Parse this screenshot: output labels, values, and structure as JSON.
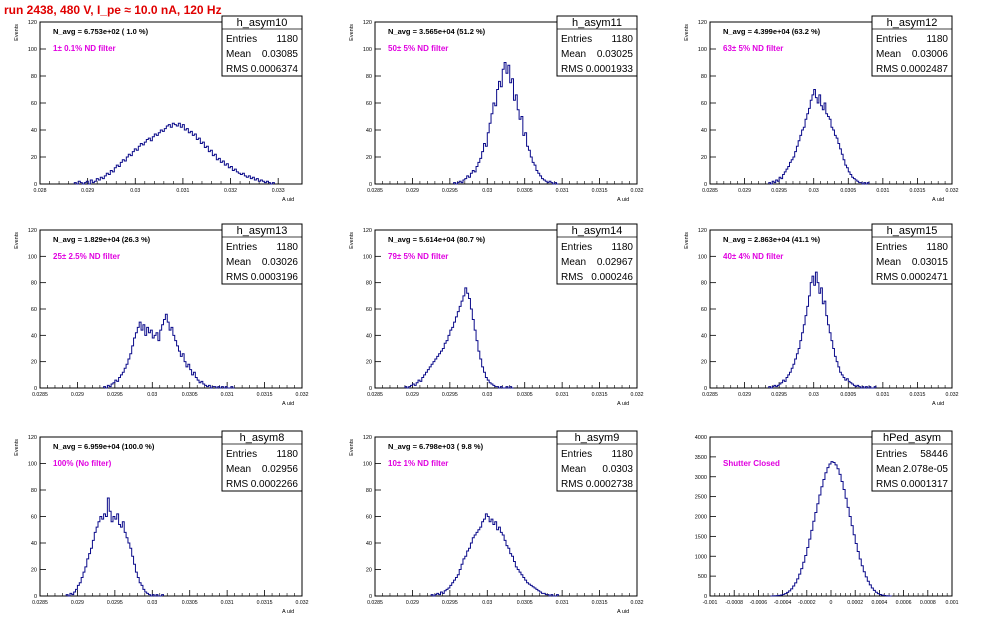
{
  "header": {
    "run_title": "run 2438,   480 V, I_pe ≈ 10.0 nA, 120 Hz"
  },
  "stats_labels": {
    "entries": "Entries",
    "mean": "Mean",
    "rms": "RMS"
  },
  "colors": {
    "histogram_line": "#0a0a8a",
    "annotation": "#e000e0",
    "title_red": "#e00000",
    "axis": "#000000"
  },
  "chart_data": [
    {
      "type": "bar",
      "name": "h_asym10",
      "ylabel": "Events",
      "xlabel": "A uid",
      "avg_text": "N_avg = 6.753e+02 ( 1.0 %)",
      "filter_text": "1± 0.1% ND filter",
      "entries": "1180",
      "mean": "0.03085",
      "rms": "0.0006374",
      "xlim": [
        0.028,
        0.0335
      ],
      "ylim": [
        0,
        120
      ],
      "xticks": [
        0.028,
        0.029,
        0.03,
        0.031,
        0.032,
        0.033
      ],
      "xtick_labels": [
        "0.028",
        "0.029",
        "0.03",
        "0.031",
        "0.032",
        "0.033"
      ],
      "yticks": [
        0,
        20,
        40,
        60,
        80,
        100,
        120
      ],
      "bin_edges": [
        0.02872,
        0.03292
      ],
      "values": [
        1,
        0,
        2,
        1,
        0,
        1,
        2,
        0,
        3,
        1,
        2,
        4,
        3,
        5,
        4,
        6,
        8,
        7,
        10,
        9,
        12,
        14,
        13,
        16,
        18,
        17,
        20,
        22,
        21,
        24,
        26,
        25,
        28,
        30,
        29,
        31,
        33,
        34,
        32,
        35,
        37,
        36,
        38,
        40,
        39,
        41,
        43,
        44,
        42,
        45,
        44,
        43,
        45,
        42,
        44,
        40,
        41,
        38,
        39,
        36,
        37,
        33,
        34,
        30,
        31,
        27,
        28,
        24,
        25,
        21,
        22,
        18,
        19,
        16,
        17,
        14,
        15,
        12,
        13,
        10,
        11,
        9,
        8,
        7,
        8,
        6,
        5,
        6,
        4,
        5,
        3,
        4,
        2,
        3,
        2,
        1,
        2,
        1,
        0,
        1
      ]
    },
    {
      "type": "bar",
      "name": "h_asym11",
      "ylabel": "Events",
      "xlabel": "A uid",
      "avg_text": "N_avg = 3.565e+04 (51.2 %)",
      "filter_text": "50± 5% ND filter",
      "entries": "1180",
      "mean": "0.03025",
      "rms": "0.0001933",
      "xlim": [
        0.0285,
        0.032
      ],
      "ylim": [
        0,
        120
      ],
      "xticks": [
        0.0285,
        0.029,
        0.0295,
        0.03,
        0.0305,
        0.031,
        0.0315,
        0.032
      ],
      "xtick_labels": [
        "0.0285",
        "0.029",
        "0.0295",
        "0.03",
        "0.0305",
        "0.031",
        "0.0315",
        "0.032"
      ],
      "yticks": [
        0,
        20,
        40,
        60,
        80,
        100,
        120
      ],
      "bin_edges": [
        0.02955,
        0.03095
      ],
      "values": [
        1,
        0,
        1,
        2,
        1,
        3,
        4,
        6,
        5,
        8,
        10,
        9,
        13,
        16,
        19,
        24,
        30,
        28,
        38,
        45,
        52,
        60,
        58,
        70,
        76,
        72,
        85,
        90,
        82,
        88,
        75,
        78,
        62,
        66,
        55,
        48,
        50,
        36,
        38,
        28,
        25,
        20,
        16,
        14,
        10,
        8,
        6,
        4,
        3,
        2,
        1,
        2,
        1,
        0,
        1,
        0
      ]
    },
    {
      "type": "bar",
      "name": "h_asym12",
      "ylabel": "Events",
      "xlabel": "A uid",
      "avg_text": "N_avg = 4.399e+04 (63.2 %)",
      "filter_text": "63± 5% ND filter",
      "entries": "1180",
      "mean": "0.03006",
      "rms": "0.0002487",
      "xlim": [
        0.0285,
        0.032
      ],
      "ylim": [
        0,
        120
      ],
      "xticks": [
        0.0285,
        0.029,
        0.0295,
        0.03,
        0.0305,
        0.031,
        0.0315,
        0.032
      ],
      "xtick_labels": [
        "0.0285",
        "0.029",
        "0.0295",
        "0.03",
        "0.0305",
        "0.031",
        "0.0315",
        "0.032"
      ],
      "yticks": [
        0,
        20,
        40,
        60,
        80,
        100,
        120
      ],
      "bin_edges": [
        0.02935,
        0.0308
      ],
      "values": [
        1,
        0,
        2,
        1,
        3,
        2,
        5,
        4,
        7,
        9,
        11,
        13,
        16,
        18,
        20,
        24,
        28,
        32,
        36,
        40,
        42,
        48,
        52,
        56,
        62,
        66,
        70,
        64,
        60,
        66,
        58,
        55,
        60,
        52,
        50,
        48,
        42,
        40,
        36,
        34,
        30,
        26,
        22,
        18,
        14,
        12,
        9,
        7,
        5,
        4,
        3,
        2,
        1,
        1,
        0,
        1,
        0,
        1
      ]
    },
    {
      "type": "bar",
      "name": "h_asym13",
      "ylabel": "Events",
      "xlabel": "A uid",
      "avg_text": "N_avg = 1.829e+04 (26.3 %)",
      "filter_text": "25± 2.5% ND filter",
      "entries": "1180",
      "mean": "0.03026",
      "rms": "0.0003196",
      "xlim": [
        0.0285,
        0.032
      ],
      "ylim": [
        0,
        120
      ],
      "xticks": [
        0.0285,
        0.029,
        0.0295,
        0.03,
        0.0305,
        0.031,
        0.0315,
        0.032
      ],
      "xtick_labels": [
        "0.0285",
        "0.029",
        "0.0295",
        "0.03",
        "0.0305",
        "0.031",
        "0.0315",
        "0.032"
      ],
      "yticks": [
        0,
        20,
        40,
        60,
        80,
        100,
        120
      ],
      "bin_edges": [
        0.02935,
        0.0311
      ],
      "values": [
        1,
        0,
        2,
        1,
        3,
        4,
        6,
        5,
        8,
        10,
        12,
        15,
        18,
        22,
        26,
        32,
        38,
        42,
        46,
        50,
        44,
        48,
        40,
        46,
        42,
        44,
        38,
        40,
        42,
        36,
        44,
        48,
        52,
        56,
        50,
        44,
        46,
        40,
        36,
        32,
        28,
        24,
        26,
        20,
        16,
        18,
        14,
        10,
        12,
        8,
        6,
        4,
        5,
        3,
        2,
        1,
        2,
        0,
        1,
        1,
        0,
        1,
        0,
        1,
        0,
        1,
        0,
        0,
        1,
        0
      ]
    },
    {
      "type": "bar",
      "name": "h_asym14",
      "ylabel": "Events",
      "xlabel": "A uid",
      "avg_text": "N_avg = 5.614e+04 (80.7 %)",
      "filter_text": "79± 5% ND filter",
      "entries": "1180",
      "mean": "0.02967",
      "rms": "0.000246",
      "xlim": [
        0.0285,
        0.032
      ],
      "ylim": [
        0,
        120
      ],
      "xticks": [
        0.0285,
        0.029,
        0.0295,
        0.03,
        0.0305,
        0.031,
        0.0315,
        0.032
      ],
      "xtick_labels": [
        "0.0285",
        "0.029",
        "0.0295",
        "0.03",
        "0.0305",
        "0.031",
        "0.0315",
        "0.032"
      ],
      "yticks": [
        0,
        20,
        40,
        60,
        80,
        100,
        120
      ],
      "bin_edges": [
        0.0289,
        0.03035
      ],
      "values": [
        1,
        0,
        1,
        2,
        3,
        2,
        4,
        6,
        5,
        8,
        10,
        12,
        14,
        16,
        18,
        20,
        22,
        24,
        26,
        28,
        30,
        34,
        36,
        40,
        44,
        46,
        50,
        54,
        58,
        62,
        66,
        70,
        76,
        72,
        68,
        60,
        52,
        44,
        36,
        28,
        22,
        16,
        12,
        8,
        6,
        4,
        3,
        2,
        1,
        1,
        0,
        1,
        0,
        0,
        1,
        0,
        1,
        0
      ]
    },
    {
      "type": "bar",
      "name": "h_asym15",
      "ylabel": "Events",
      "xlabel": "A uid",
      "avg_text": "N_avg = 2.863e+04 (41.1 %)",
      "filter_text": "40± 4% ND filter",
      "entries": "1180",
      "mean": "0.03015",
      "rms": "0.0002471",
      "xlim": [
        0.0285,
        0.032
      ],
      "ylim": [
        0,
        120
      ],
      "xticks": [
        0.0285,
        0.029,
        0.0295,
        0.03,
        0.0305,
        0.031,
        0.0315,
        0.032
      ],
      "xtick_labels": [
        "0.0285",
        "0.029",
        "0.0295",
        "0.03",
        "0.0305",
        "0.031",
        "0.0315",
        "0.032"
      ],
      "yticks": [
        0,
        20,
        40,
        60,
        80,
        100,
        120
      ],
      "bin_edges": [
        0.02935,
        0.0309
      ],
      "values": [
        1,
        0,
        1,
        2,
        1,
        2,
        3,
        4,
        6,
        5,
        8,
        10,
        12,
        15,
        18,
        22,
        26,
        30,
        36,
        42,
        48,
        55,
        62,
        70,
        80,
        85,
        78,
        88,
        80,
        72,
        76,
        64,
        66,
        55,
        48,
        42,
        36,
        30,
        24,
        20,
        16,
        12,
        10,
        8,
        6,
        7,
        5,
        4,
        3,
        2,
        1,
        2,
        1,
        0,
        1,
        0,
        1,
        0,
        1,
        0,
        0,
        1
      ]
    },
    {
      "type": "bar",
      "name": "h_asym8",
      "ylabel": "Events",
      "xlabel": "A uid",
      "avg_text": "N_avg = 6.959e+04 (100.0 %)",
      "filter_text": "100% (No filter)",
      "entries": "1180",
      "mean": "0.02956",
      "rms": "0.0002266",
      "xlim": [
        0.0285,
        0.032
      ],
      "ylim": [
        0,
        120
      ],
      "xticks": [
        0.0285,
        0.029,
        0.0295,
        0.03,
        0.0305,
        0.031,
        0.0315,
        0.032
      ],
      "xtick_labels": [
        "0.0285",
        "0.029",
        "0.0295",
        "0.03",
        "0.0305",
        "0.031",
        "0.0315",
        "0.032"
      ],
      "yticks": [
        0,
        20,
        40,
        60,
        80,
        100,
        120
      ],
      "bin_edges": [
        0.02885,
        0.03015
      ],
      "values": [
        1,
        0,
        2,
        1,
        3,
        5,
        8,
        10,
        14,
        18,
        22,
        28,
        32,
        36,
        42,
        48,
        52,
        56,
        60,
        58,
        62,
        60,
        74,
        64,
        56,
        60,
        58,
        62,
        54,
        52,
        56,
        48,
        44,
        40,
        36,
        30,
        24,
        18,
        14,
        10,
        8,
        5,
        3,
        2,
        1,
        0,
        1,
        0,
        1,
        0,
        0,
        1
      ]
    },
    {
      "type": "bar",
      "name": "h_asym9",
      "ylabel": "Events",
      "xlabel": "A uid",
      "avg_text": "N_avg = 6.798e+03 ( 9.8 %)",
      "filter_text": "10± 1% ND filter",
      "entries": "1180",
      "mean": "0.0303",
      "rms": "0.0002738",
      "xlim": [
        0.0285,
        0.032
      ],
      "ylim": [
        0,
        120
      ],
      "xticks": [
        0.0285,
        0.029,
        0.0295,
        0.03,
        0.0305,
        0.031,
        0.0315,
        0.032
      ],
      "xtick_labels": [
        "0.0285",
        "0.029",
        "0.0295",
        "0.03",
        "0.0305",
        "0.031",
        "0.0315",
        "0.032"
      ],
      "yticks": [
        0,
        20,
        40,
        60,
        80,
        100,
        120
      ],
      "bin_edges": [
        0.02925,
        0.03095
      ],
      "values": [
        1,
        0,
        1,
        2,
        1,
        3,
        2,
        4,
        5,
        6,
        8,
        10,
        12,
        14,
        16,
        20,
        24,
        28,
        30,
        34,
        36,
        40,
        44,
        46,
        48,
        50,
        52,
        56,
        58,
        62,
        60,
        56,
        58,
        54,
        56,
        50,
        52,
        48,
        46,
        42,
        38,
        36,
        32,
        30,
        26,
        22,
        20,
        18,
        16,
        14,
        12,
        10,
        9,
        8,
        7,
        6,
        5,
        4,
        3,
        2,
        2,
        1,
        1,
        0,
        1,
        0,
        0,
        1
      ]
    },
    {
      "type": "bar",
      "name": "hPed_asym",
      "ylabel": "",
      "xlabel": "",
      "avg_text": "",
      "filter_text": "Shutter Closed",
      "entries": "58446",
      "mean": "2.078e-05",
      "rms": "0.0001317",
      "xlim": [
        -0.001,
        0.001
      ],
      "ylim": [
        0,
        4000
      ],
      "xticks": [
        -0.001,
        -0.0008,
        -0.0006,
        -0.0004,
        -0.0002,
        0,
        0.0002,
        0.0004,
        0.0006,
        0.0008,
        0.001
      ],
      "xtick_labels": [
        "-0.001",
        "-0.0008",
        "-0.0006",
        "-0.0004",
        "-0.0002",
        "0",
        "0.0002",
        "0.0004",
        "0.0006",
        "0.0008",
        "0.001"
      ],
      "yticks": [
        0,
        500,
        1000,
        1500,
        2000,
        2500,
        3000,
        3500,
        4000
      ],
      "ytick_labels": [
        "0",
        "500",
        "1000",
        "1500",
        "2000",
        "2500",
        "3000",
        "3500",
        "4000"
      ],
      "bin_edges": [
        -0.0005,
        0.0005
      ],
      "values": [
        0,
        2,
        5,
        8,
        15,
        25,
        40,
        60,
        90,
        130,
        180,
        250,
        330,
        430,
        550,
        690,
        850,
        1020,
        1220,
        1430,
        1650,
        1880,
        2100,
        2320,
        2540,
        2750,
        2930,
        3100,
        3230,
        3320,
        3380,
        3360,
        3300,
        3200,
        3060,
        2880,
        2680,
        2460,
        2230,
        2000,
        1770,
        1540,
        1320,
        1120,
        930,
        760,
        610,
        480,
        370,
        280,
        200,
        140,
        95,
        60,
        38,
        22,
        12,
        6,
        3,
        1
      ]
    }
  ]
}
